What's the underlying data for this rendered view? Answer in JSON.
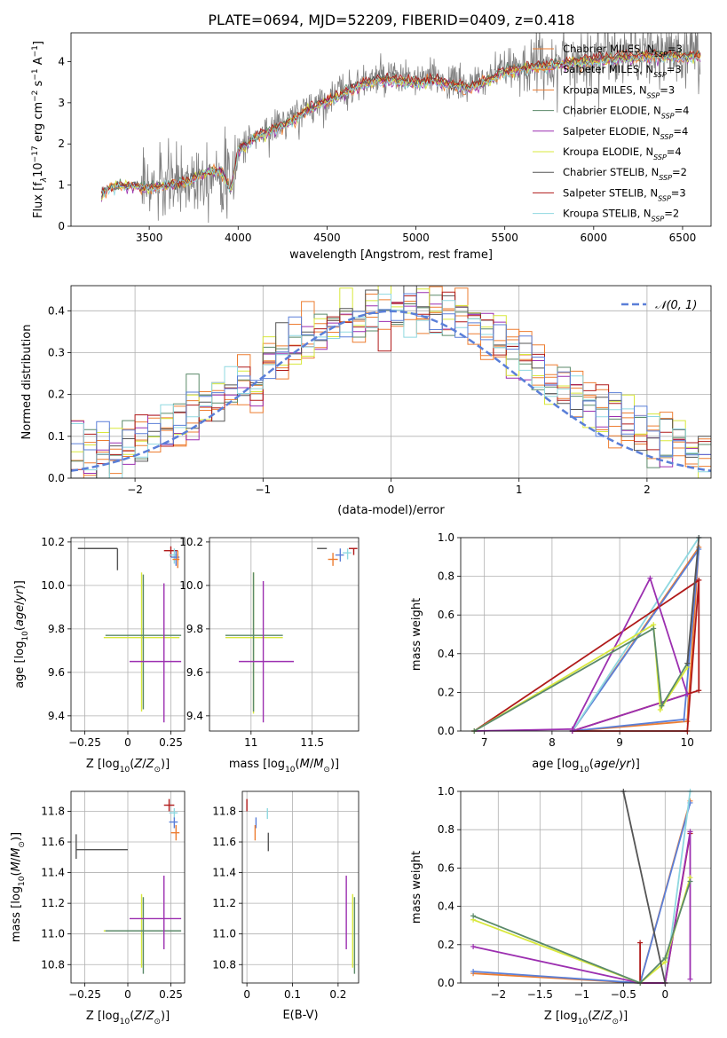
{
  "figure": {
    "title": "PLATE=0694, MJD=52209, FIBERID=0409, z=0.418"
  },
  "legend_spectrum": [
    {
      "label": "Chabrier MILES, N",
      "sub": "SSP",
      "tail": "=3",
      "color": "#ed7d31"
    },
    {
      "label": "Salpeter MILES, N",
      "sub": "SSP",
      "tail": "=3",
      "color": "#ed7d31"
    },
    {
      "label": "Kroupa MILES, N",
      "sub": "SSP",
      "tail": "=3",
      "color": "#ed7d31"
    },
    {
      "label": "Chabrier ELODIE, N",
      "sub": "SSP",
      "tail": "=4",
      "color": "#5b8a6a"
    },
    {
      "label": "Salpeter ELODIE, N",
      "sub": "SSP",
      "tail": "=4",
      "color": "#9c2fb0"
    },
    {
      "label": "Kroupa ELODIE, N",
      "sub": "SSP",
      "tail": "=4",
      "color": "#d8e83c"
    },
    {
      "label": "Chabrier STELIB, N",
      "sub": "SSP",
      "tail": "=2",
      "color": "#555555"
    },
    {
      "label": "Salpeter STELIB, N",
      "sub": "SSP",
      "tail": "=3",
      "color": "#b01a1a"
    },
    {
      "label": "Kroupa STELIB, N",
      "sub": "SSP",
      "tail": "=2",
      "color": "#8fd8e0"
    }
  ],
  "chart_data": [
    {
      "id": "spectrum",
      "type": "line",
      "xlabel": "wavelength [Angstrom, rest frame]",
      "ylabel": "Flux [f_λ 10^-17 erg cm^-2 s^-1 A^-1]",
      "xlim": [
        3060,
        6660
      ],
      "ylim": [
        0,
        4.7
      ],
      "xticks": [
        3500,
        4000,
        4500,
        5000,
        5500,
        6000,
        6500
      ],
      "yticks": [
        0,
        1,
        2,
        3,
        4
      ],
      "data_color": "#808080",
      "continuum": {
        "x": [
          3230,
          3300,
          3400,
          3500,
          3600,
          3700,
          3800,
          3900,
          3960,
          4000,
          4100,
          4200,
          4300,
          4400,
          4500,
          4600,
          4700,
          4800,
          4900,
          5000,
          5100,
          5200,
          5300,
          5400,
          5500,
          5600,
          5700,
          5800,
          5900,
          6000,
          6100,
          6200,
          6300,
          6400,
          6500,
          6600
        ],
        "y": [
          0.8,
          1.0,
          1.0,
          0.95,
          1.0,
          1.1,
          1.3,
          1.4,
          0.9,
          1.9,
          2.2,
          2.4,
          2.6,
          2.9,
          3.1,
          3.3,
          3.5,
          3.6,
          3.6,
          3.55,
          3.6,
          3.5,
          3.4,
          3.6,
          3.8,
          3.9,
          3.95,
          4.0,
          4.05,
          4.1,
          4.15,
          4.15,
          4.2,
          4.2,
          4.2,
          4.2
        ]
      }
    },
    {
      "id": "residuals",
      "type": "line",
      "xlabel": "(data-model)/error",
      "ylabel": "Normed distribution",
      "xlim": [
        -2.5,
        2.5
      ],
      "ylim": [
        0,
        0.46
      ],
      "xticks": [
        -2,
        -1,
        0,
        1,
        2
      ],
      "yticks": [
        0.0,
        0.1,
        0.2,
        0.3,
        0.4
      ],
      "normal": {
        "label": "𝒩(0, 1)",
        "mu": 0,
        "sigma": 1,
        "color": "#5a7fd8"
      }
    },
    {
      "id": "age-vs-Z",
      "type": "scatter",
      "xlabel": "Z [log10(Z/Z⊙)]",
      "ylabel": "age [log10(age/yr)]",
      "xlim": [
        -0.33,
        0.33
      ],
      "ylim": [
        9.33,
        10.22
      ],
      "xticks": [
        -0.25,
        0.0,
        0.25
      ],
      "yticks": [
        9.4,
        9.6,
        9.8,
        10.0,
        10.2
      ],
      "points": [
        {
          "x": -0.06,
          "y": 10.17,
          "xerr": [
            0.23,
            0.0
          ],
          "yerr": [
            0.1,
            0.0
          ],
          "color": "#555555"
        },
        {
          "x": 0.08,
          "y": 9.76,
          "xerr": [
            0.22,
            0.22
          ],
          "yerr": [
            0.34,
            0.3
          ],
          "color": "#d8e83c"
        },
        {
          "x": 0.09,
          "y": 9.77,
          "xerr": [
            0.22,
            0.22
          ],
          "yerr": [
            0.34,
            0.28
          ],
          "color": "#5b8a6a"
        },
        {
          "x": 0.21,
          "y": 9.65,
          "xerr": [
            0.2,
            0.1
          ],
          "yerr": [
            0.28,
            0.36
          ],
          "color": "#9c2fb0"
        },
        {
          "x": 0.25,
          "y": 10.16,
          "xerr": [
            0.04,
            0.04
          ],
          "yerr": [
            0.03,
            0.02
          ],
          "color": "#b01a1a"
        },
        {
          "x": 0.27,
          "y": 10.14,
          "xerr": [
            0.03,
            0.02
          ],
          "yerr": [
            0.04,
            0.03
          ],
          "color": "#8fd8e0"
        },
        {
          "x": 0.28,
          "y": 10.13,
          "xerr": [
            0.03,
            0.02
          ],
          "yerr": [
            0.04,
            0.03
          ],
          "color": "#5a7fd8"
        },
        {
          "x": 0.29,
          "y": 10.12,
          "xerr": [
            0.03,
            0.01
          ],
          "yerr": [
            0.04,
            0.04
          ],
          "color": "#ed7d31"
        }
      ]
    },
    {
      "id": "age-vs-mass",
      "type": "scatter",
      "xlabel": "mass [log10(M/M⊙)]",
      "ylabel": "",
      "xlim": [
        10.66,
        11.88
      ],
      "ylim": [
        9.33,
        10.22
      ],
      "xticks": [
        11.0,
        11.5
      ],
      "yticks": [
        9.4,
        9.6,
        9.8,
        10.0,
        10.2
      ],
      "points": [
        {
          "x": 11.54,
          "y": 10.17,
          "xerr": [
            0.0,
            0.08
          ],
          "yerr": [
            0.0,
            0.0
          ],
          "color": "#555555"
        },
        {
          "x": 11.02,
          "y": 9.76,
          "xerr": [
            0.23,
            0.24
          ],
          "yerr": [
            0.35,
            0.3
          ],
          "color": "#d8e83c"
        },
        {
          "x": 11.02,
          "y": 9.77,
          "xerr": [
            0.23,
            0.24
          ],
          "yerr": [
            0.35,
            0.29
          ],
          "color": "#5b8a6a"
        },
        {
          "x": 11.1,
          "y": 9.65,
          "xerr": [
            0.2,
            0.25
          ],
          "yerr": [
            0.28,
            0.37
          ],
          "color": "#9c2fb0"
        },
        {
          "x": 11.84,
          "y": 10.17,
          "xerr": [
            0.04,
            0.03
          ],
          "yerr": [
            0.03,
            0.0
          ],
          "color": "#b01a1a"
        },
        {
          "x": 11.79,
          "y": 10.15,
          "xerr": [
            0.04,
            0.03
          ],
          "yerr": [
            0.03,
            0.02
          ],
          "color": "#8fd8e0"
        },
        {
          "x": 11.73,
          "y": 10.14,
          "xerr": [
            0.04,
            0.03
          ],
          "yerr": [
            0.03,
            0.03
          ],
          "color": "#5a7fd8"
        },
        {
          "x": 11.67,
          "y": 10.12,
          "xerr": [
            0.04,
            0.04
          ],
          "yerr": [
            0.03,
            0.03
          ],
          "color": "#ed7d31"
        }
      ]
    },
    {
      "id": "mass-weight-vs-age",
      "type": "line",
      "xlabel": "age [log10(age/yr)]",
      "ylabel": "mass weight",
      "xlim": [
        6.65,
        10.35
      ],
      "ylim": [
        0,
        1
      ],
      "xticks": [
        7,
        8,
        9,
        10
      ],
      "yticks": [
        0.0,
        0.2,
        0.4,
        0.6,
        0.8,
        1.0
      ],
      "series": [
        {
          "color": "#ed7d31",
          "x": [
            8.3,
            10.0,
            10.17,
            8.3
          ],
          "y": [
            0.0,
            0.05,
            0.95,
            0.0
          ]
        },
        {
          "color": "#5a7fd8",
          "x": [
            8.3,
            9.95,
            10.17,
            8.3
          ],
          "y": [
            0.0,
            0.06,
            0.94,
            0.0
          ]
        },
        {
          "color": "#8fd8e0",
          "x": [
            8.3,
            10.17,
            8.3
          ],
          "y": [
            0.0,
            1.0,
            0.0
          ]
        },
        {
          "color": "#b01a1a",
          "x": [
            6.85,
            10.17,
            10.17,
            8.3,
            10.0,
            10.17
          ],
          "y": [
            0.0,
            0.78,
            0.21,
            0.0,
            0.0,
            0.78
          ]
        },
        {
          "color": "#9c2fb0",
          "x": [
            6.85,
            8.3,
            9.45,
            10.0,
            8.3
          ],
          "y": [
            0.0,
            0.01,
            0.79,
            0.19,
            0.0
          ]
        },
        {
          "color": "#d8e83c",
          "x": [
            6.85,
            9.5,
            9.6,
            10.0
          ],
          "y": [
            0.0,
            0.55,
            0.11,
            0.33
          ]
        },
        {
          "color": "#5b8a6a",
          "x": [
            6.85,
            9.5,
            9.62,
            10.0
          ],
          "y": [
            0.0,
            0.53,
            0.13,
            0.35
          ]
        },
        {
          "color": "#555555",
          "x": [
            10.0,
            10.17
          ],
          "y": [
            0.35,
            1.0
          ]
        }
      ]
    },
    {
      "id": "mass-vs-Z",
      "type": "scatter",
      "xlabel": "Z [log10(Z/Z⊙)]",
      "ylabel": "mass [log10(M/M⊙)]",
      "xlim": [
        -0.33,
        0.33
      ],
      "ylim": [
        10.68,
        11.93
      ],
      "xticks": [
        -0.25,
        0.0,
        0.25
      ],
      "yticks": [
        10.8,
        11.0,
        11.2,
        11.4,
        11.6,
        11.8
      ],
      "points": [
        {
          "x": -0.3,
          "y": 11.55,
          "xerr": [
            0.0,
            0.3
          ],
          "yerr": [
            0.06,
            0.1
          ],
          "color": "#555555"
        },
        {
          "x": 0.08,
          "y": 11.02,
          "xerr": [
            0.22,
            0.22
          ],
          "yerr": [
            0.24,
            0.24
          ],
          "color": "#d8e83c"
        },
        {
          "x": 0.09,
          "y": 11.02,
          "xerr": [
            0.22,
            0.22
          ],
          "yerr": [
            0.28,
            0.22
          ],
          "color": "#5b8a6a"
        },
        {
          "x": 0.21,
          "y": 11.1,
          "xerr": [
            0.2,
            0.1
          ],
          "yerr": [
            0.2,
            0.28
          ],
          "color": "#9c2fb0"
        },
        {
          "x": 0.24,
          "y": 11.84,
          "xerr": [
            0.03,
            0.03
          ],
          "yerr": [
            0.04,
            0.04
          ],
          "color": "#b01a1a"
        },
        {
          "x": 0.27,
          "y": 11.79,
          "xerr": [
            0.03,
            0.02
          ],
          "yerr": [
            0.04,
            0.03
          ],
          "color": "#8fd8e0"
        },
        {
          "x": 0.27,
          "y": 11.73,
          "xerr": [
            0.03,
            0.02
          ],
          "yerr": [
            0.04,
            0.03
          ],
          "color": "#5a7fd8"
        },
        {
          "x": 0.28,
          "y": 11.66,
          "xerr": [
            0.03,
            0.02
          ],
          "yerr": [
            0.05,
            0.05
          ],
          "color": "#ed7d31"
        }
      ]
    },
    {
      "id": "mass-vs-EBV",
      "type": "scatter",
      "xlabel": "E(B-V)",
      "ylabel": "",
      "xlim": [
        -0.01,
        0.245
      ],
      "ylim": [
        10.68,
        11.93
      ],
      "xticks": [
        0.0,
        0.1,
        0.2
      ],
      "yticks": [
        10.8,
        11.0,
        11.2,
        11.4,
        11.6,
        11.8
      ],
      "points": [
        {
          "x": 0.0,
          "y": 11.84,
          "xerr": [
            0,
            0
          ],
          "yerr": [
            0.04,
            0.04
          ],
          "color": "#b01a1a"
        },
        {
          "x": 0.045,
          "y": 11.79,
          "xerr": [
            0,
            0
          ],
          "yerr": [
            0.04,
            0.03
          ],
          "color": "#8fd8e0"
        },
        {
          "x": 0.02,
          "y": 11.73,
          "xerr": [
            0,
            0
          ],
          "yerr": [
            0.04,
            0.03
          ],
          "color": "#5a7fd8"
        },
        {
          "x": 0.018,
          "y": 11.66,
          "xerr": [
            0,
            0
          ],
          "yerr": [
            0.05,
            0.05
          ],
          "color": "#ed7d31"
        },
        {
          "x": 0.047,
          "y": 11.6,
          "xerr": [
            0,
            0
          ],
          "yerr": [
            0.06,
            0.06
          ],
          "color": "#555555"
        },
        {
          "x": 0.218,
          "y": 11.1,
          "xerr": [
            0,
            0
          ],
          "yerr": [
            0.2,
            0.28
          ],
          "color": "#9c2fb0"
        },
        {
          "x": 0.232,
          "y": 11.02,
          "xerr": [
            0,
            0
          ],
          "yerr": [
            0.24,
            0.24
          ],
          "color": "#d8e83c"
        },
        {
          "x": 0.236,
          "y": 11.02,
          "xerr": [
            0,
            0
          ],
          "yerr": [
            0.28,
            0.22
          ],
          "color": "#5b8a6a"
        }
      ]
    },
    {
      "id": "mass-weight-vs-Z",
      "type": "line",
      "xlabel": "Z [log10(Z/Z⊙)]",
      "ylabel": "mass weight",
      "xlim": [
        -2.45,
        0.55
      ],
      "ylim": [
        0,
        1
      ],
      "xticks": [
        -2.0,
        -1.5,
        -1.0,
        -0.5,
        0.0
      ],
      "yticks": [
        0.0,
        0.2,
        0.4,
        0.6,
        0.8,
        1.0
      ],
      "series": [
        {
          "color": "#ed7d31",
          "x": [
            -2.3,
            -0.3,
            0.3,
            -0.3
          ],
          "y": [
            0.05,
            0.0,
            0.95,
            0.0
          ]
        },
        {
          "color": "#5a7fd8",
          "x": [
            -2.3,
            -0.3,
            0.3
          ],
          "y": [
            0.06,
            0.0,
            0.94
          ]
        },
        {
          "color": "#8fd8e0",
          "x": [
            0.0,
            0.3
          ],
          "y": [
            0.0,
            1.0
          ]
        },
        {
          "color": "#b01a1a",
          "x": [
            -0.3,
            -0.3,
            0.0,
            0.3
          ],
          "y": [
            0.21,
            0.0,
            0.0,
            0.78
          ]
        },
        {
          "color": "#9c2fb0",
          "x": [
            -2.3,
            -0.3,
            0.0,
            0.3,
            0.3
          ],
          "y": [
            0.19,
            0.0,
            0.0,
            0.79,
            0.02
          ]
        },
        {
          "color": "#d8e83c",
          "x": [
            -2.3,
            -0.3,
            0.0,
            0.3
          ],
          "y": [
            0.33,
            0.0,
            0.11,
            0.55
          ]
        },
        {
          "color": "#5b8a6a",
          "x": [
            -2.3,
            -0.3,
            0.0,
            0.3
          ],
          "y": [
            0.35,
            0.0,
            0.13,
            0.53
          ]
        },
        {
          "color": "#555555",
          "x": [
            -0.5,
            0.0
          ],
          "y": [
            1.0,
            0.0
          ]
        }
      ]
    }
  ]
}
